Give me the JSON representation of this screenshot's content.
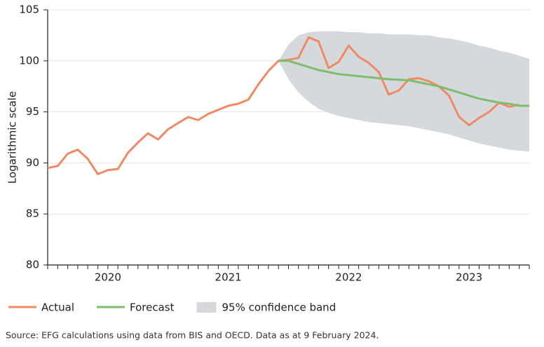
{
  "chart_data": {
    "type": "line",
    "ylabel": "Logarithmic scale",
    "source": "Source: EFG calculations using data from BIS and OECD. Data as at 9 February 2024.",
    "x": [
      2020.0,
      2020.083,
      2020.167,
      2020.25,
      2020.333,
      2020.417,
      2020.5,
      2020.583,
      2020.667,
      2020.75,
      2020.833,
      2020.917,
      2021.0,
      2021.083,
      2021.167,
      2021.25,
      2021.333,
      2021.417,
      2021.5,
      2021.583,
      2021.667,
      2021.75,
      2021.833,
      2021.917,
      2022.0,
      2022.083,
      2022.167,
      2022.25,
      2022.333,
      2022.417,
      2022.5,
      2022.583,
      2022.667,
      2022.75,
      2022.833,
      2022.917,
      2023.0,
      2023.083,
      2023.167,
      2023.25,
      2023.333,
      2023.417,
      2023.5,
      2023.583,
      2023.667,
      2023.75,
      2023.833,
      2023.917,
      2024.0
    ],
    "xlim": [
      2020.0,
      2024.0
    ],
    "xticks": [
      {
        "value": 2020.5,
        "label": "2020"
      },
      {
        "value": 2021.5,
        "label": "2021"
      },
      {
        "value": 2022.5,
        "label": "2022"
      },
      {
        "value": 2023.5,
        "label": "2023"
      }
    ],
    "ylim": [
      80,
      105
    ],
    "yticks": [
      80,
      85,
      90,
      95,
      100,
      105
    ],
    "grid": true,
    "series": [
      {
        "name": "Actual",
        "color": "#ef8a62",
        "values": [
          89.5,
          89.7,
          90.9,
          91.3,
          90.4,
          88.9,
          89.3,
          89.4,
          91.0,
          92.0,
          92.9,
          92.3,
          93.3,
          93.9,
          94.5,
          94.2,
          94.8,
          95.2,
          95.6,
          95.8,
          96.2,
          97.7,
          99.0,
          100.0,
          100.1,
          100.3,
          102.3,
          101.9,
          99.3,
          99.9,
          101.5,
          100.4,
          99.8,
          98.9,
          96.7,
          97.1,
          98.2,
          98.3,
          98.0,
          97.5,
          96.6,
          94.5,
          93.7,
          94.4,
          95.0,
          95.9,
          95.5,
          95.7,
          null
        ]
      },
      {
        "name": "Forecast",
        "color": "#7dbd6b",
        "values": [
          null,
          null,
          null,
          null,
          null,
          null,
          null,
          null,
          null,
          null,
          null,
          null,
          null,
          null,
          null,
          null,
          null,
          null,
          null,
          null,
          null,
          null,
          null,
          100.0,
          100.0,
          99.7,
          99.4,
          99.1,
          98.9,
          98.7,
          98.6,
          98.5,
          98.4,
          98.3,
          98.2,
          98.15,
          98.1,
          97.9,
          97.7,
          97.5,
          97.2,
          96.9,
          96.6,
          96.3,
          96.1,
          95.9,
          95.8,
          95.6,
          95.6
        ]
      }
    ],
    "band": {
      "name": "95% confidence band",
      "color": "#d5d9de",
      "upper": [
        null,
        null,
        null,
        null,
        null,
        null,
        null,
        null,
        null,
        null,
        null,
        null,
        null,
        null,
        null,
        null,
        null,
        null,
        null,
        null,
        null,
        null,
        null,
        100.0,
        101.6,
        102.5,
        102.8,
        102.9,
        102.9,
        102.9,
        102.8,
        102.8,
        102.7,
        102.7,
        102.6,
        102.6,
        102.6,
        102.5,
        102.5,
        102.3,
        102.2,
        102.0,
        101.8,
        101.5,
        101.3,
        101.0,
        100.8,
        100.5,
        100.2
      ],
      "lower": [
        null,
        null,
        null,
        null,
        null,
        null,
        null,
        null,
        null,
        null,
        null,
        null,
        null,
        null,
        null,
        null,
        null,
        null,
        null,
        null,
        null,
        null,
        null,
        100.0,
        98.2,
        96.9,
        96.0,
        95.3,
        94.9,
        94.6,
        94.4,
        94.2,
        94.0,
        93.9,
        93.8,
        93.7,
        93.6,
        93.4,
        93.2,
        93.0,
        92.8,
        92.5,
        92.2,
        91.9,
        91.7,
        91.5,
        91.3,
        91.2,
        91.1
      ]
    }
  }
}
